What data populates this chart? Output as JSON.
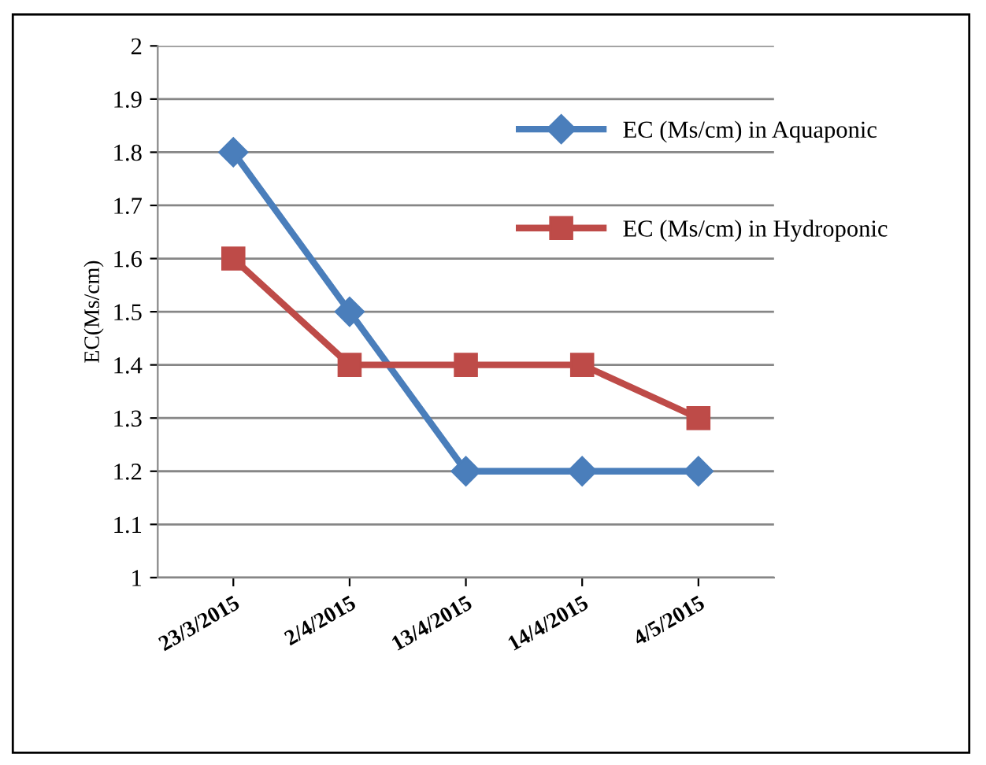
{
  "chart_data": {
    "type": "line",
    "ylabel": "EC(Ms/cm)",
    "categories": [
      "23/3/2015",
      "2/4/2015",
      "13/4/2015",
      "14/4/2015",
      "4/5/2015"
    ],
    "series": [
      {
        "name": "EC (Ms/cm) in Aquaponic",
        "color": "#4a7ebb",
        "marker": "diamond",
        "values": [
          1.8,
          1.5,
          1.2,
          1.2,
          1.2
        ]
      },
      {
        "name": "EC (Ms/cm) in Hydroponic",
        "color": "#be4b48",
        "marker": "square",
        "values": [
          1.6,
          1.4,
          1.4,
          1.4,
          1.3
        ]
      }
    ],
    "ylim": [
      1,
      2
    ],
    "yticks": [
      1,
      1.1,
      1.2,
      1.3,
      1.4,
      1.5,
      1.6,
      1.7,
      1.8,
      1.9,
      2
    ],
    "grid": "y",
    "legend": "top right"
  }
}
